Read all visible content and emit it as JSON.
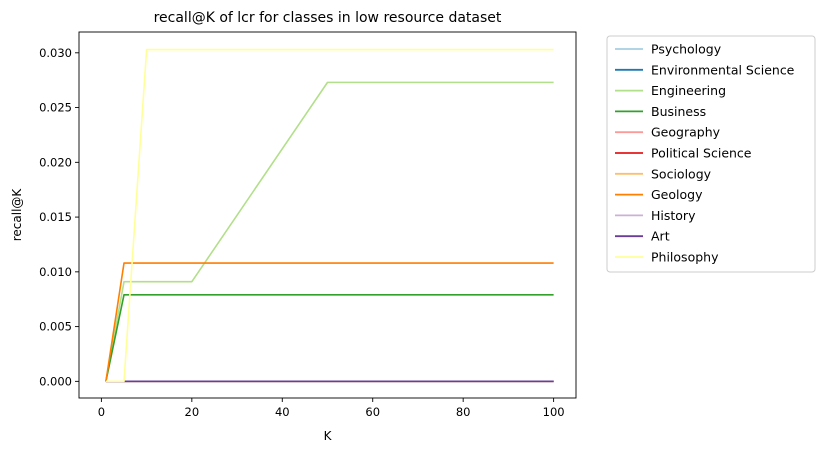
{
  "chart_data": {
    "type": "line",
    "title": "recall@K of lcr for classes in low resource dataset",
    "xlabel": "K",
    "ylabel": "recall@K",
    "xlim": [
      -4.95,
      104.95
    ],
    "ylim": [
      -0.00152,
      0.0319
    ],
    "x_ticks": [
      0,
      20,
      40,
      60,
      80,
      100
    ],
    "x_tick_labels": [
      "0",
      "20",
      "40",
      "60",
      "80",
      "100"
    ],
    "y_ticks": [
      0,
      0.005,
      0.01,
      0.015,
      0.02,
      0.025,
      0.03
    ],
    "y_tick_labels": [
      "0.000",
      "0.005",
      "0.010",
      "0.015",
      "0.020",
      "0.025",
      "0.030"
    ],
    "grid": false,
    "legend_placement": "outside-right-top",
    "x": [
      1,
      5,
      10,
      20,
      50,
      100
    ],
    "series": [
      {
        "name": "Psychology",
        "color": "#a6cee3",
        "values": [
          0,
          0,
          0,
          0,
          0,
          0
        ]
      },
      {
        "name": "Environmental Science",
        "color": "#1f78b4",
        "values": [
          0,
          0,
          0,
          0,
          0,
          0
        ]
      },
      {
        "name": "Engineering",
        "color": "#b2df8a",
        "values": [
          0,
          0.0091,
          0.0091,
          0.0091,
          0.0273,
          0.0273
        ]
      },
      {
        "name": "Business",
        "color": "#33a02c",
        "values": [
          0,
          0.0079,
          0.0079,
          0.0079,
          0.0079,
          0.0079
        ]
      },
      {
        "name": "Geography",
        "color": "#fb9a99",
        "values": [
          0,
          0,
          0,
          0,
          0,
          0
        ]
      },
      {
        "name": "Political Science",
        "color": "#e31a1c",
        "values": [
          0,
          0,
          0,
          0,
          0,
          0
        ]
      },
      {
        "name": "Sociology",
        "color": "#fdbf6f",
        "values": [
          0,
          0,
          0,
          0,
          0,
          0
        ]
      },
      {
        "name": "Geology",
        "color": "#ff7f00",
        "values": [
          0,
          0.0108,
          0.0108,
          0.0108,
          0.0108,
          0.0108
        ]
      },
      {
        "name": "History",
        "color": "#cab2d6",
        "values": [
          0,
          0,
          0,
          0,
          0,
          0
        ]
      },
      {
        "name": "Art",
        "color": "#6a3d9a",
        "values": [
          0,
          0,
          0,
          0,
          0,
          0
        ]
      },
      {
        "name": "Philosophy",
        "color": "#ffff99",
        "values": [
          0,
          0,
          0.0303,
          0.0303,
          0.0303,
          0.0303
        ]
      }
    ]
  }
}
